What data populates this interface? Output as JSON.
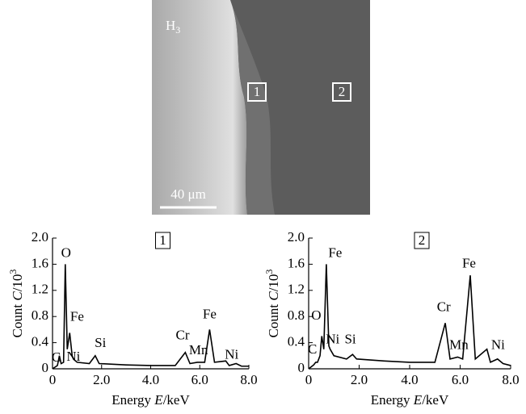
{
  "image": {
    "label": "H",
    "label_subscript": "3",
    "regions": [
      "1",
      "2"
    ],
    "scale_bar": "40 μm"
  },
  "chart_data": [
    {
      "type": "line",
      "title": "1",
      "x_label": {
        "prefix": "Energy ",
        "symbol": "E",
        "unit": "/keV"
      },
      "y_label": {
        "prefix": "Count ",
        "symbol": "C",
        "unit": "/10",
        "exponent": "3"
      },
      "x": [
        0,
        0.2,
        0.28,
        0.35,
        0.45,
        0.52,
        0.6,
        0.7,
        0.8,
        0.85,
        1.0,
        1.5,
        1.74,
        1.9,
        3,
        4,
        5,
        5.41,
        5.6,
        5.9,
        6.2,
        6.4,
        6.6,
        7.06,
        7.2,
        7.48,
        7.7,
        8.0
      ],
      "series": [
        {
          "color": "#000000",
          "values": [
            0,
            0.05,
            0.2,
            0.08,
            0.1,
            1.6,
            0.3,
            0.55,
            0.2,
            0.15,
            0.1,
            0.08,
            0.2,
            0.08,
            0.06,
            0.05,
            0.05,
            0.25,
            0.08,
            0.1,
            0.1,
            0.6,
            0.1,
            0.12,
            0.05,
            0.08,
            0.04,
            0.04
          ]
        }
      ],
      "xlim": [
        0,
        8
      ],
      "xticks": [
        0,
        {
          "value": 2,
          "label": "2.0"
        },
        {
          "value": 4,
          "label": "4.0"
        },
        {
          "value": 6,
          "label": "6.0"
        },
        {
          "value": 8,
          "label": "8.0"
        }
      ],
      "ylim": [
        0,
        2
      ],
      "yticks": [
        0,
        0.4,
        0.8,
        1.2,
        1.6,
        {
          "value": 2,
          "label": "2.0"
        }
      ],
      "annotations": [
        {
          "text": "C",
          "x": 0.15,
          "y": 0.16
        },
        {
          "text": "O",
          "x": 0.55,
          "y": 1.76
        },
        {
          "text": "Fe",
          "x": 1.0,
          "y": 0.78
        },
        {
          "text": "Ni",
          "x": 0.85,
          "y": 0.17
        },
        {
          "text": "Si",
          "x": 1.95,
          "y": 0.38
        },
        {
          "text": "Cr",
          "x": 5.3,
          "y": 0.5
        },
        {
          "text": "Mn",
          "x": 5.95,
          "y": 0.27
        },
        {
          "text": "Fe",
          "x": 6.4,
          "y": 0.82
        },
        {
          "text": "Ni",
          "x": 7.3,
          "y": 0.2
        }
      ]
    },
    {
      "type": "line",
      "title": "2",
      "x_label": {
        "prefix": "Energy ",
        "symbol": "E",
        "unit": "/keV"
      },
      "y_label": {
        "prefix": "Count ",
        "symbol": "C",
        "unit": "/10",
        "exponent": "3"
      },
      "x": [
        0,
        0.2,
        0.28,
        0.35,
        0.45,
        0.52,
        0.6,
        0.7,
        0.8,
        0.85,
        1.0,
        1.5,
        1.74,
        1.9,
        3,
        4,
        5,
        5.41,
        5.6,
        5.9,
        6.1,
        6.4,
        6.6,
        7.06,
        7.2,
        7.48,
        7.7,
        8.0
      ],
      "series": [
        {
          "color": "#000000",
          "values": [
            0,
            0.06,
            0.1,
            0.1,
            0.2,
            0.5,
            0.3,
            1.6,
            0.35,
            0.3,
            0.2,
            0.15,
            0.22,
            0.15,
            0.12,
            0.1,
            0.1,
            0.7,
            0.15,
            0.18,
            0.15,
            1.43,
            0.15,
            0.3,
            0.1,
            0.15,
            0.08,
            0.05
          ]
        }
      ],
      "xlim": [
        0,
        8
      ],
      "xticks": [
        0,
        {
          "value": 2,
          "label": "2.0"
        },
        {
          "value": 4,
          "label": "4.0"
        },
        {
          "value": 6,
          "label": "6.0"
        },
        {
          "value": 8,
          "label": "8.0"
        }
      ],
      "ylim": [
        0,
        2
      ],
      "yticks": [
        0,
        0.4,
        0.8,
        1.2,
        1.6,
        {
          "value": 2,
          "label": "2.0"
        }
      ],
      "annotations": [
        {
          "text": "C",
          "x": 0.15,
          "y": 0.28
        },
        {
          "text": "O",
          "x": 0.3,
          "y": 0.8
        },
        {
          "text": "Fe",
          "x": 1.05,
          "y": 1.76
        },
        {
          "text": "Ni",
          "x": 0.95,
          "y": 0.44
        },
        {
          "text": "Si",
          "x": 1.65,
          "y": 0.44
        },
        {
          "text": "Cr",
          "x": 5.35,
          "y": 0.93
        },
        {
          "text": "Mn",
          "x": 5.95,
          "y": 0.35
        },
        {
          "text": "Fe",
          "x": 6.35,
          "y": 1.6
        },
        {
          "text": "Ni",
          "x": 7.5,
          "y": 0.35
        }
      ]
    }
  ]
}
